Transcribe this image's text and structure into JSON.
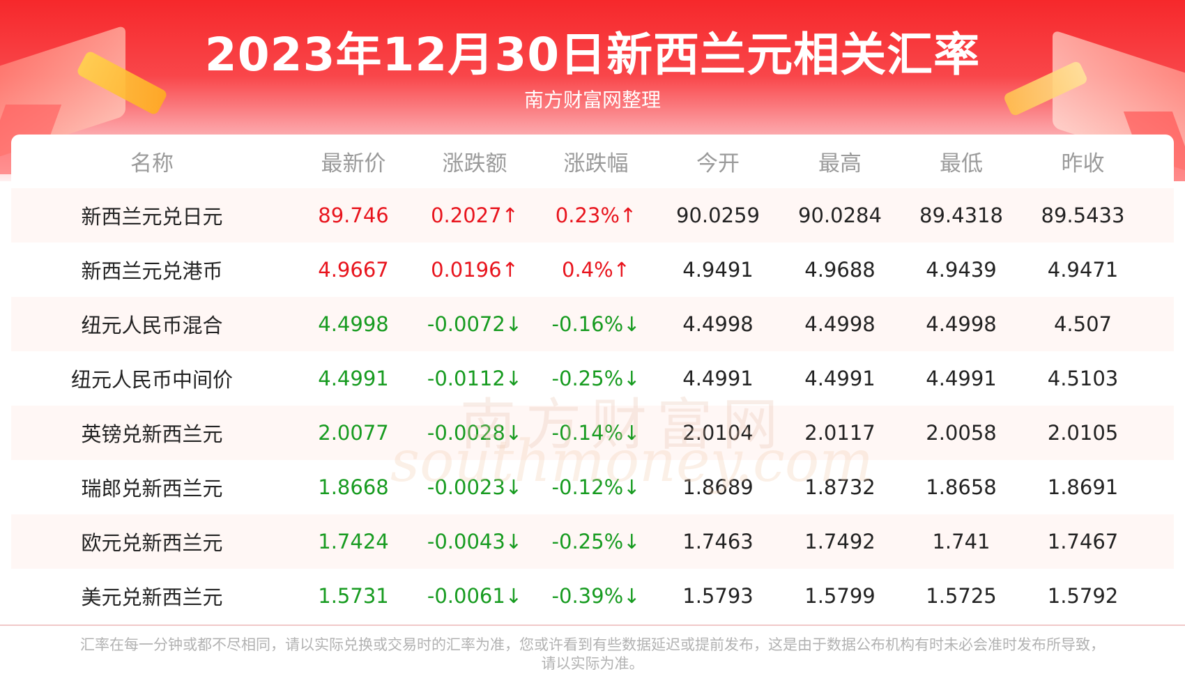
{
  "header": {
    "title": "2023年12月30日新西兰元相关汇率",
    "subtitle": "南方财富网整理"
  },
  "table": {
    "headers": [
      "名称",
      "最新价",
      "涨跌额",
      "涨跌幅",
      "今开",
      "最高",
      "最低",
      "昨收"
    ],
    "rows": [
      {
        "name": "新西兰元兑日元",
        "latest": "89.746",
        "change": "0.2027↑",
        "pct": "0.23%↑",
        "open": "90.0259",
        "high": "90.0284",
        "low": "89.4318",
        "prev": "89.5433",
        "trend": "up"
      },
      {
        "name": "新西兰元兑港币",
        "latest": "4.9667",
        "change": "0.0196↑",
        "pct": "0.4%↑",
        "open": "4.9491",
        "high": "4.9688",
        "low": "4.9439",
        "prev": "4.9471",
        "trend": "up"
      },
      {
        "name": "纽元人民币混合",
        "latest": "4.4998",
        "change": "-0.0072↓",
        "pct": "-0.16%↓",
        "open": "4.4998",
        "high": "4.4998",
        "low": "4.4998",
        "prev": "4.507",
        "trend": "down"
      },
      {
        "name": "纽元人民币中间价",
        "latest": "4.4991",
        "change": "-0.0112↓",
        "pct": "-0.25%↓",
        "open": "4.4991",
        "high": "4.4991",
        "low": "4.4991",
        "prev": "4.5103",
        "trend": "down"
      },
      {
        "name": "英镑兑新西兰元",
        "latest": "2.0077",
        "change": "-0.0028↓",
        "pct": "-0.14%↓",
        "open": "2.0104",
        "high": "2.0117",
        "low": "2.0058",
        "prev": "2.0105",
        "trend": "down"
      },
      {
        "name": "瑞郎兑新西兰元",
        "latest": "1.8668",
        "change": "-0.0023↓",
        "pct": "-0.12%↓",
        "open": "1.8689",
        "high": "1.8732",
        "low": "1.8658",
        "prev": "1.8691",
        "trend": "down"
      },
      {
        "name": "欧元兑新西兰元",
        "latest": "1.7424",
        "change": "-0.0043↓",
        "pct": "-0.25%↓",
        "open": "1.7463",
        "high": "1.7492",
        "low": "1.741",
        "prev": "1.7467",
        "trend": "down"
      },
      {
        "name": "美元兑新西兰元",
        "latest": "1.5731",
        "change": "-0.0061↓",
        "pct": "-0.39%↓",
        "open": "1.5793",
        "high": "1.5799",
        "low": "1.5725",
        "prev": "1.5792",
        "trend": "down"
      }
    ]
  },
  "watermark": {
    "cn": "南方财富网",
    "en": "southmoney.com"
  },
  "footer": {
    "line1": "汇率在每一分钟或都不尽相同，请以实际兑换或交易时的汇率为准，您或许看到有些数据延迟或提前发布，这是由于数据公布机构有时未必会准时发布所导致，",
    "line2": "请以实际为准。"
  },
  "colors": {
    "up": "#e8141d",
    "down": "#179b20",
    "header_red": "#f6282b"
  }
}
